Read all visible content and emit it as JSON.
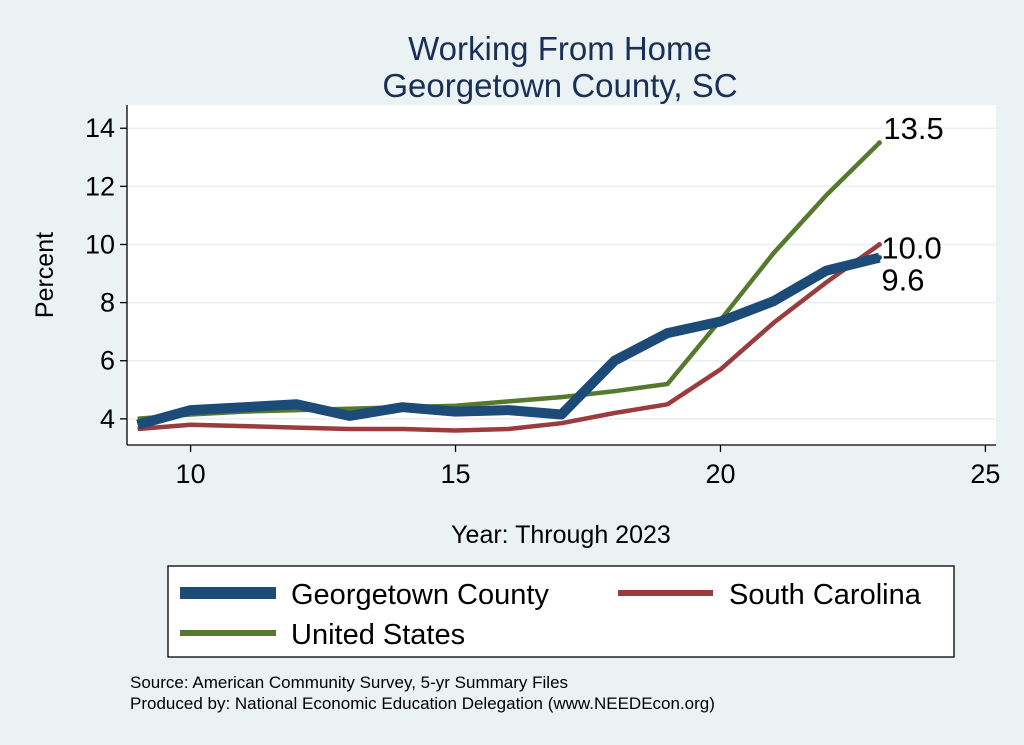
{
  "chart_data": {
    "type": "line",
    "title": [
      "Working From Home",
      "Georgetown County, SC"
    ],
    "xlabel": "Year: Through 2023",
    "ylabel": "Percent",
    "xlim": [
      8.8,
      25.2
    ],
    "ylim": [
      3.1,
      14.8
    ],
    "xticks": [
      10,
      15,
      20,
      25
    ],
    "yticks": [
      4,
      6,
      8,
      10,
      12,
      14
    ],
    "grid": true,
    "series": [
      {
        "name": "United States",
        "color": "#557a2d",
        "x": [
          9,
          10,
          11,
          12,
          13,
          14,
          15,
          16,
          17,
          18,
          19,
          20,
          21,
          22,
          23
        ],
        "y": [
          4.0,
          4.15,
          4.25,
          4.3,
          4.35,
          4.4,
          4.45,
          4.6,
          4.75,
          4.95,
          5.2,
          7.4,
          9.7,
          11.7,
          13.5
        ],
        "end_label": "13.5"
      },
      {
        "name": "South Carolina",
        "color": "#9b3b3d",
        "x": [
          9,
          10,
          11,
          12,
          13,
          14,
          15,
          16,
          17,
          18,
          19,
          20,
          21,
          22,
          23
        ],
        "y": [
          3.65,
          3.8,
          3.75,
          3.7,
          3.65,
          3.65,
          3.6,
          3.65,
          3.85,
          4.2,
          4.5,
          5.7,
          7.3,
          8.7,
          10.0
        ],
        "end_label": "10.0"
      },
      {
        "name": "Georgetown County",
        "color": "#1d4b78",
        "x": [
          9,
          10,
          11,
          12,
          13,
          14,
          15,
          16,
          17,
          18,
          19,
          20,
          21,
          22,
          23
        ],
        "y": [
          3.8,
          4.3,
          4.4,
          4.5,
          4.1,
          4.4,
          4.25,
          4.3,
          4.15,
          6.0,
          6.95,
          7.35,
          8.05,
          9.1,
          9.55
        ],
        "end_label": "9.6"
      }
    ],
    "legend": {
      "position": "bottom",
      "items": [
        "Georgetown County",
        "South Carolina",
        "United States"
      ]
    }
  },
  "source_note": "Source: American Community Survey, 5-yr Summary Files",
  "produced_note": "Produced by: National Economic Education Delegation (www.NEEDEcon.org)"
}
